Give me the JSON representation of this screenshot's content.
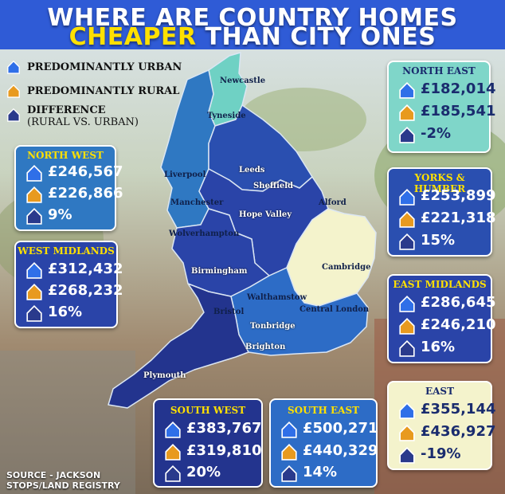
{
  "title": {
    "line1": "WHERE ARE COUNTRY HOMES",
    "highlight": "CHEAPER",
    "line2_rest": "THAN CITY ONES"
  },
  "legend": {
    "urban": "PREDOMINANTLY URBAN",
    "rural": "PREDOMINANTLY RURAL",
    "difference_line1": "DIFFERENCE",
    "difference_line2": "(RURAL VS. URBAN)"
  },
  "colors": {
    "urban": "#2f6fe8",
    "rural": "#e89a1f",
    "difference": "#2a3a8c",
    "highlight": "#ffe000"
  },
  "regions": {
    "north_east": {
      "name": "NORTH EAST",
      "urban": "£182,014",
      "rural": "£185,541",
      "diff": "-2%"
    },
    "north_west": {
      "name": "NORTH WEST",
      "urban": "£246,567",
      "rural": "£226,866",
      "diff": "9%"
    },
    "yorks": {
      "name": "YORKS & HUMBER",
      "urban": "£253,899",
      "rural": "£221,318",
      "diff": "15%"
    },
    "west_midlands": {
      "name": "WEST MIDLANDS",
      "urban": "£312,432",
      "rural": "£268,232",
      "diff": "16%"
    },
    "east_midlands": {
      "name": "EAST MIDLANDS",
      "urban": "£286,645",
      "rural": "£246,210",
      "diff": "16%"
    },
    "east": {
      "name": "EAST",
      "urban": "£355,144",
      "rural": "£436,927",
      "diff": "-19%"
    },
    "south_west": {
      "name": "SOUTH WEST",
      "urban": "£383,767",
      "rural": "£319,810",
      "diff": "20%"
    },
    "south_east": {
      "name": "SOUTH EAST",
      "urban": "£500,271",
      "rural": "£440,329",
      "diff": "14%"
    }
  },
  "places": {
    "newcastle": "Newcastle",
    "tyneside": "Tyneside",
    "leeds": "Leeds",
    "liverpool": "Liverpool",
    "sheffield": "Sheffield",
    "manchester": "Manchester",
    "alford": "Alford",
    "hope_valley": "Hope Valley",
    "wolverhampton": "Wolverhampton",
    "cambridge": "Cambridge",
    "birmingham": "Birmingham",
    "walthamstow": "Walthamstow",
    "bristol": "Bristol",
    "central_london": "Central London",
    "tonbridge": "Tonbridge",
    "brighton": "Brighton",
    "plymouth": "Plymouth"
  },
  "source": {
    "line1": "SOURCE - JACKSON",
    "line2": "STOPS/LAND REGISTRY"
  }
}
